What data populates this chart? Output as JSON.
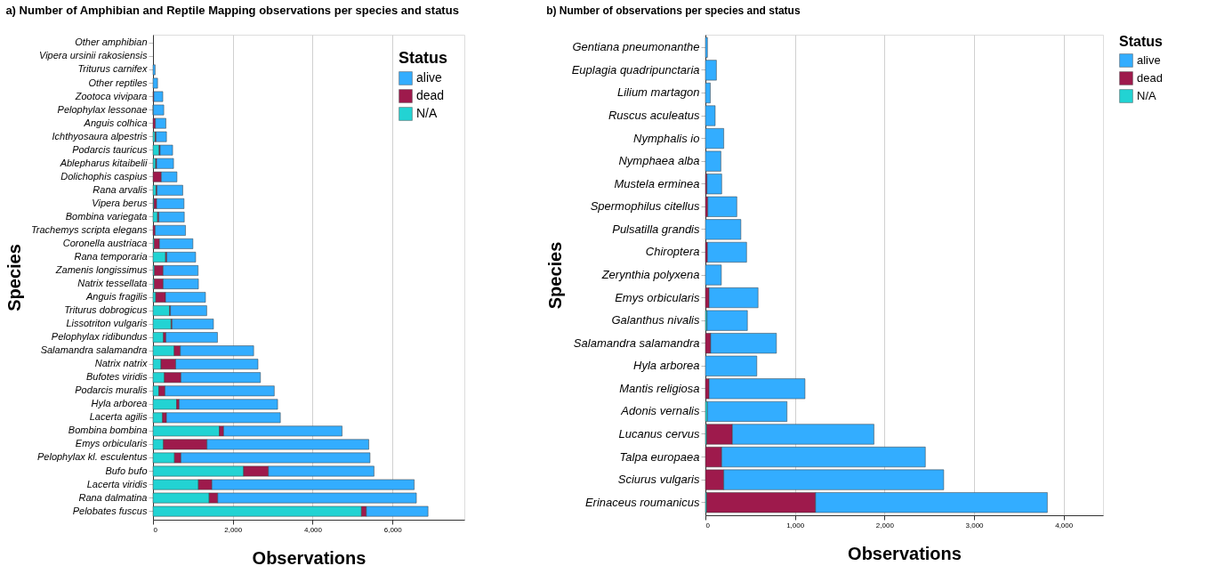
{
  "chart_data": [
    {
      "type": "bar",
      "orientation": "horizontal",
      "stacked": true,
      "title": "a) Number of Amphibian and Reptile Mapping observations per species and status",
      "xlabel": "Observations",
      "ylabel": "Species",
      "legend_title": "Status",
      "legend": "top right",
      "grid": "x",
      "categories": [
        "Other amphibian",
        "Vipera ursinii rakosiensis",
        "Triturus carnifex",
        "Other reptiles",
        "Zootoca vivipara",
        "Pelophylax lessonae",
        "Anguis colhica",
        "Ichthyosaura alpestris",
        "Podarcis tauricus",
        "Ablepharus kitaibelii",
        "Dolichophis caspius",
        "Rana arvalis",
        "Vipera berus",
        "Bombina variegata",
        "Trachemys scripta elegans",
        "Coronella austriaca",
        "Rana temporaria",
        "Zamenis longissimus",
        "Natrix tessellata",
        "Anguis fragilis",
        "Triturus dobrogicus",
        "Lissotriton vulgaris",
        "Pelophylax ridibundus",
        "Salamandra salamandra",
        "Natrix natrix",
        "Bufotes viridis",
        "Podarcis muralis",
        "Hyla arborea",
        "Lacerta agilis",
        "Bombina bombina",
        "Emys orbicularis",
        "Pelophylax kl. esculentus",
        "Bufo bufo",
        "Lacerta viridis",
        "Rana dalmatina",
        "Pelobates fuscus"
      ],
      "xlim": [
        0,
        7800
      ],
      "xticks": [
        0,
        {
          "value": 2000,
          "label": "2,000"
        },
        {
          "value": 4000,
          "label": "4,000"
        },
        {
          "value": 6000,
          "label": "6,000"
        }
      ],
      "series": [
        {
          "name": "N/A",
          "color": "#22d3d3",
          "values": [
            0,
            0,
            0,
            0,
            0,
            5,
            0,
            54,
            154,
            69,
            null,
            77,
            23,
            115,
            null,
            31,
            315,
            38,
            31,
            69,
            415,
            454,
            261,
            531,
            200,
            285,
            146,
            592,
            238,
            1661,
            261,
            538,
            2269,
            1138,
            1407,
            5222
          ]
        },
        {
          "name": "dead",
          "color": "#9e1a4c",
          "values": [
            0,
            0,
            0,
            0,
            20,
            0,
            60,
            23,
            23,
            23,
            208,
            23,
            69,
            31,
            54,
            131,
            31,
            215,
            223,
            246,
            23,
            23,
            62,
            154,
            369,
            415,
            154,
            62,
            100,
            108,
            1092,
            162,
            623,
            338,
            215,
            123
          ]
        },
        {
          "name": "alive",
          "color": "#33adff",
          "values": [
            null,
            null,
            54,
            115,
            226,
            265,
            263,
            261,
            315,
            423,
            392,
            646,
            685,
            638,
            761,
            838,
            723,
            877,
            884,
            1000,
            908,
            1038,
            1292,
            1837,
            2061,
            1992,
            2738,
            2468,
            2853,
            2968,
            4053,
            4737,
            2645,
            5068,
            4976,
            1545
          ]
        }
      ]
    },
    {
      "type": "bar",
      "orientation": "horizontal",
      "stacked": true,
      "title": "b) Number of observations per species and status",
      "xlabel": "Observations",
      "ylabel": "Species",
      "legend_title": "Status",
      "legend": "right",
      "grid": "x",
      "categories": [
        "Gentiana pneumonanthe",
        "Euplagia quadripunctaria",
        "Lilium martagon",
        "Ruscus aculeatus",
        "Nymphalis io",
        "Nymphaea alba",
        "Mustela erminea",
        "Spermophilus citellus",
        "Pulsatilla grandis",
        "Chiroptera",
        "Zerynthia polyxena",
        "Emys orbicularis",
        "Galanthus nivalis",
        "Salamandra salamandra",
        "Hyla arborea",
        "Mantis religiosa",
        "Adonis vernalis",
        "Lucanus cervus",
        "Talpa europaea",
        "Sciurus vulgaris",
        "Erinaceus roumanicus"
      ],
      "xlim": [
        0,
        4440
      ],
      "xticks": [
        0,
        {
          "value": 1000,
          "label": "1,000"
        },
        {
          "value": 2000,
          "label": "2,000"
        },
        {
          "value": 3000,
          "label": "3,000"
        },
        {
          "value": 4000,
          "label": "4,000"
        }
      ],
      "series": [
        {
          "name": "N/A",
          "color": "#22d3d3",
          "values": [
            0,
            0,
            0,
            0,
            0,
            0,
            0,
            0,
            0,
            0,
            0,
            0,
            18,
            0,
            0,
            0,
            23,
            14,
            0,
            0,
            14
          ]
        },
        {
          "name": "dead",
          "color": "#9e1a4c",
          "values": [
            0,
            0,
            0,
            0,
            0,
            0,
            18,
            27,
            0,
            23,
            0,
            41,
            0,
            59,
            0,
            41,
            0,
            287,
            182,
            205,
            1216
          ]
        },
        {
          "name": "alive",
          "color": "#33adff",
          "values": [
            23,
            123,
            55,
            109,
            205,
            173,
            164,
            324,
            396,
            437,
            178,
            547,
            451,
            734,
            574,
            1071,
            888,
            1581,
            2274,
            2456,
            2588
          ]
        }
      ]
    }
  ]
}
